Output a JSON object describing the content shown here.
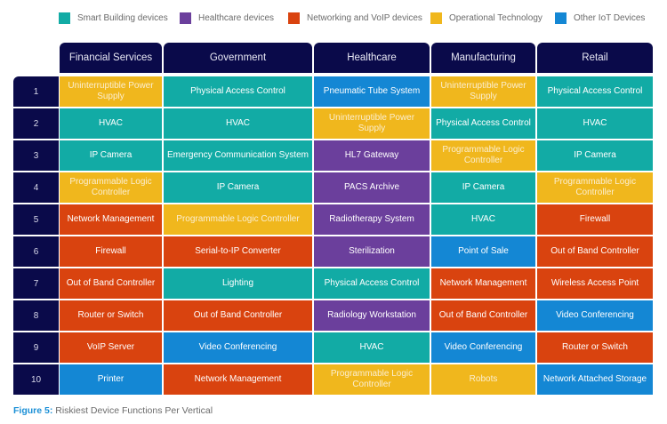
{
  "chart_data": {
    "type": "table",
    "title": "Riskiest Device Functions Per Vertical",
    "legend": [
      {
        "key": "smart_building",
        "label": "Smart Building devices",
        "color": "#12aba5"
      },
      {
        "key": "healthcare",
        "label": "Healthcare devices",
        "color": "#6b3f9c"
      },
      {
        "key": "networking",
        "label": "Networking and VoIP devices",
        "color": "#d9430f"
      },
      {
        "key": "ot",
        "label": "Operational Technology",
        "color": "#f0b71d"
      },
      {
        "key": "other",
        "label": "Other IoT Devices",
        "color": "#1487d4"
      }
    ],
    "columns": [
      "Financial Services",
      "Government",
      "Healthcare",
      "Manufacturing",
      "Retail"
    ],
    "ranks": [
      "1",
      "2",
      "3",
      "4",
      "5",
      "6",
      "7",
      "8",
      "9",
      "10"
    ],
    "rows": [
      [
        {
          "text": "Uninterruptible Power Supply",
          "cat": "ot"
        },
        {
          "text": "Physical Access Control",
          "cat": "smart_building"
        },
        {
          "text": "Pneumatic Tube System",
          "cat": "other"
        },
        {
          "text": "Uninterruptible Power Supply",
          "cat": "ot"
        },
        {
          "text": "Physical Access Control",
          "cat": "smart_building"
        }
      ],
      [
        {
          "text": "HVAC",
          "cat": "smart_building"
        },
        {
          "text": "HVAC",
          "cat": "smart_building"
        },
        {
          "text": "Uninterruptible Power Supply",
          "cat": "ot"
        },
        {
          "text": "Physical Access Control",
          "cat": "smart_building"
        },
        {
          "text": "HVAC",
          "cat": "smart_building"
        }
      ],
      [
        {
          "text": "IP Camera",
          "cat": "smart_building"
        },
        {
          "text": "Emergency Communication System",
          "cat": "smart_building"
        },
        {
          "text": "HL7 Gateway",
          "cat": "healthcare"
        },
        {
          "text": "Programmable Logic Controller",
          "cat": "ot"
        },
        {
          "text": "IP Camera",
          "cat": "smart_building"
        }
      ],
      [
        {
          "text": "Programmable Logic Controller",
          "cat": "ot"
        },
        {
          "text": "IP Camera",
          "cat": "smart_building"
        },
        {
          "text": "PACS Archive",
          "cat": "healthcare"
        },
        {
          "text": "IP Camera",
          "cat": "smart_building"
        },
        {
          "text": "Programmable Logic Controller",
          "cat": "ot"
        }
      ],
      [
        {
          "text": "Network Management",
          "cat": "networking"
        },
        {
          "text": "Programmable Logic Controller",
          "cat": "ot"
        },
        {
          "text": "Radiotherapy System",
          "cat": "healthcare"
        },
        {
          "text": "HVAC",
          "cat": "smart_building"
        },
        {
          "text": "Firewall",
          "cat": "networking"
        }
      ],
      [
        {
          "text": "Firewall",
          "cat": "networking"
        },
        {
          "text": "Serial-to-IP Converter",
          "cat": "networking"
        },
        {
          "text": "Sterilization",
          "cat": "healthcare"
        },
        {
          "text": "Point of Sale",
          "cat": "other"
        },
        {
          "text": "Out of Band Controller",
          "cat": "networking"
        }
      ],
      [
        {
          "text": "Out of Band Controller",
          "cat": "networking"
        },
        {
          "text": "Lighting",
          "cat": "smart_building"
        },
        {
          "text": "Physical Access Control",
          "cat": "smart_building"
        },
        {
          "text": "Network Management",
          "cat": "networking"
        },
        {
          "text": "Wireless Access Point",
          "cat": "networking"
        }
      ],
      [
        {
          "text": "Router or Switch",
          "cat": "networking"
        },
        {
          "text": "Out of Band Controller",
          "cat": "networking"
        },
        {
          "text": "Radiology Workstation",
          "cat": "healthcare"
        },
        {
          "text": "Out of Band Controller",
          "cat": "networking"
        },
        {
          "text": "Video Conferencing",
          "cat": "other"
        }
      ],
      [
        {
          "text": "VoIP Server",
          "cat": "networking"
        },
        {
          "text": "Video Conferencing",
          "cat": "other"
        },
        {
          "text": "HVAC",
          "cat": "smart_building"
        },
        {
          "text": "Video Conferencing",
          "cat": "other"
        },
        {
          "text": "Router or Switch",
          "cat": "networking"
        }
      ],
      [
        {
          "text": "Printer",
          "cat": "other"
        },
        {
          "text": "Network Management",
          "cat": "networking"
        },
        {
          "text": "Programmable Logic Controller",
          "cat": "ot"
        },
        {
          "text": "Robots",
          "cat": "ot"
        },
        {
          "text": "Network Attached Storage",
          "cat": "other"
        }
      ]
    ]
  },
  "caption": {
    "figure_label": "Figure 5:",
    "text": " Riskiest Device Functions Per Vertical"
  }
}
